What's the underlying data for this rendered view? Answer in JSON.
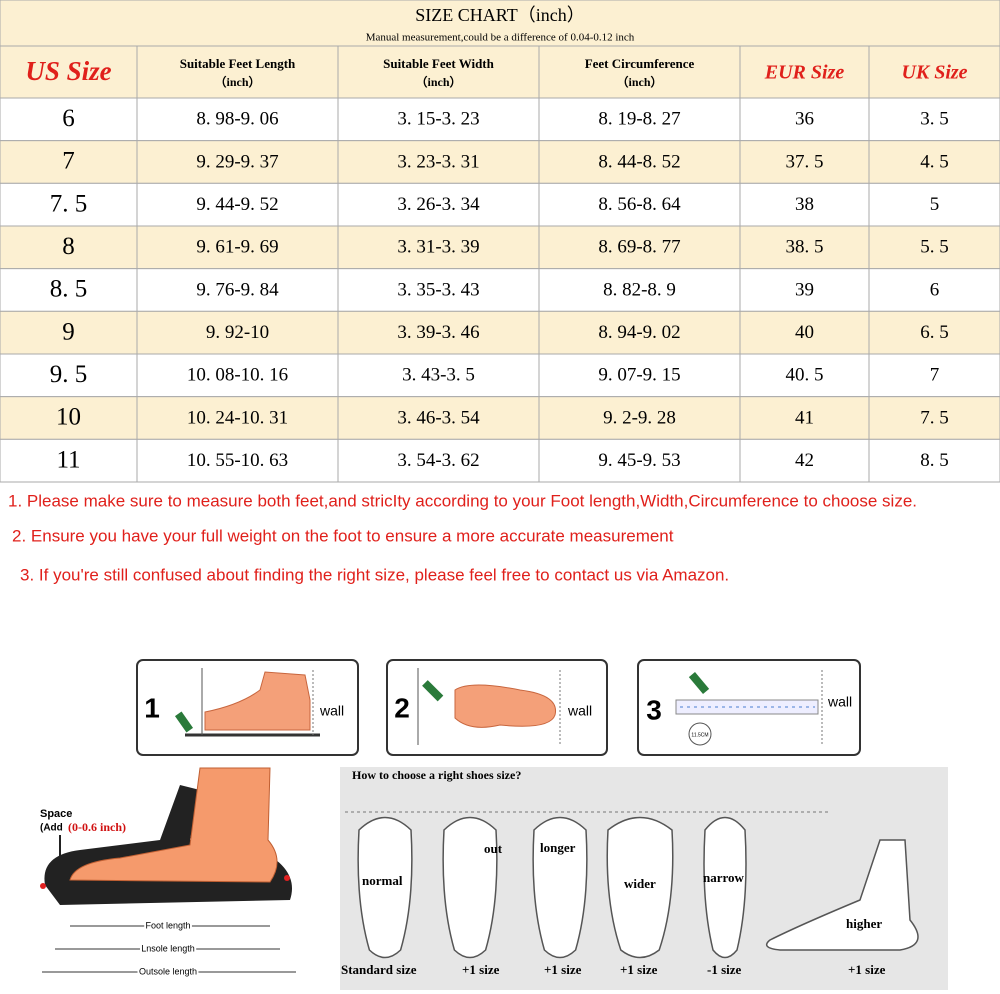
{
  "header": {
    "title": "SIZE CHART（inch）",
    "subtitle": "Manual measurement,could be a difference of  0.04-0.12 inch"
  },
  "table": {
    "columns": [
      {
        "name": "US Size"
      },
      {
        "name": "Suitable Feet Length",
        "unit": "（inch）"
      },
      {
        "name": "Suitable Feet Width",
        "unit": "（inch）"
      },
      {
        "name": "Feet Circumference",
        "unit": "（inch）"
      },
      {
        "name": "EUR Size"
      },
      {
        "name": "UK Size"
      }
    ],
    "rows": [
      [
        "6",
        "8. 98-9. 06",
        "3. 15-3. 23",
        "8. 19-8. 27",
        "36",
        "3. 5"
      ],
      [
        "7",
        "9. 29-9. 37",
        "3. 23-3. 31",
        "8. 44-8. 52",
        "37. 5",
        "4. 5"
      ],
      [
        "7. 5",
        "9. 44-9. 52",
        "3. 26-3. 34",
        "8. 56-8. 64",
        "38",
        "5"
      ],
      [
        "8",
        "9. 61-9. 69",
        "3. 31-3. 39",
        "8. 69-8. 77",
        "38. 5",
        "5. 5"
      ],
      [
        "8. 5",
        "9. 76-9. 84",
        "3. 35-3. 43",
        "8. 82-8. 9",
        "39",
        "6"
      ],
      [
        "9",
        "9. 92-10",
        "3. 39-3. 46",
        "8. 94-9. 02",
        "40",
        "6. 5"
      ],
      [
        "9. 5",
        "10. 08-10. 16",
        "3. 43-3. 5",
        "9. 07-9. 15",
        "40. 5",
        "7"
      ],
      [
        "10",
        "10. 24-10. 31",
        "3. 46-3. 54",
        "9. 2-9. 28",
        "41",
        "7. 5"
      ],
      [
        "11",
        "10. 55-10. 63",
        "3. 54-3. 62",
        "9. 45-9. 53",
        "42",
        "8. 5"
      ]
    ]
  },
  "notes": [
    "1. Please make sure to measure both feet,and stricIty according to your Foot length,Width,Circumference to choose size.",
    "2. Ensure you have your full weight on the foot to ensure a more accurate measurement",
    "3. If you're still confused about finding the right size, please feel free to contact us via Amazon."
  ],
  "steps": [
    {
      "number": "1",
      "label": "wall"
    },
    {
      "number": "2",
      "label": "wall"
    },
    {
      "number": "3",
      "label": "wall",
      "mark": "11.5CM"
    }
  ],
  "foot_diagram": {
    "space": "Space",
    "add": "(Add",
    "range": "(0-0.6 inch)",
    "foot_length": "Foot length",
    "insole_length": "Lnsole length",
    "outsole_length": "Outsole length"
  },
  "guide": {
    "title": "How to choose a right shoes size?",
    "top_labels": [
      "normal",
      "out",
      "longer",
      "wider",
      "narrow",
      "higher"
    ],
    "bottom_labels": [
      "Standard size",
      "+1 size",
      "+1 size",
      "+1 size",
      "-1 size",
      "+1 size"
    ]
  }
}
